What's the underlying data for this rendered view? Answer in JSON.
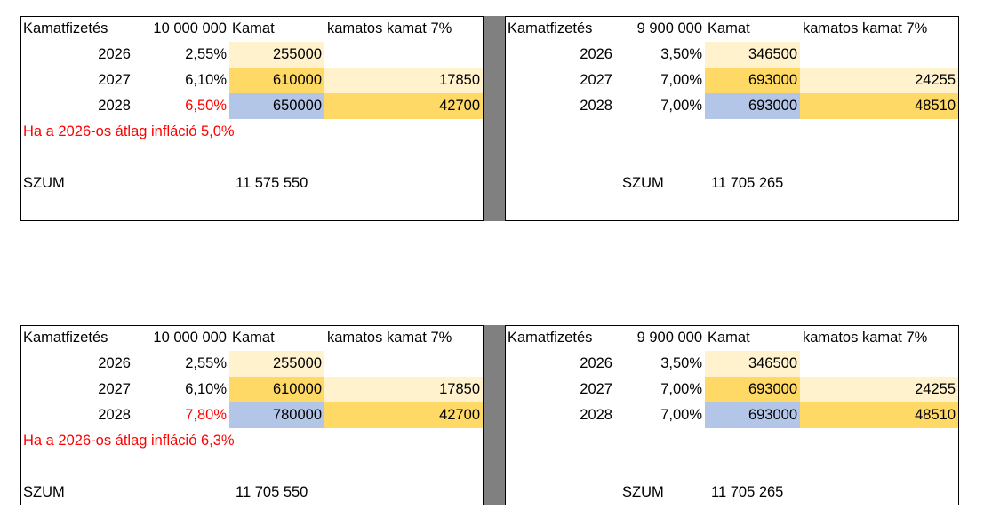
{
  "colors": {
    "light": "#FFF2CC",
    "gold": "#FFD966",
    "blue": "#B4C6E7",
    "red": "#FF0000"
  },
  "blocks": [
    {
      "left": {
        "label": "Kamatfizetés",
        "principal": "10 000 000",
        "kamat": "Kamat",
        "compound": "kamatos kamat 7%",
        "rows": [
          {
            "year": "2026",
            "rate": "2,55%",
            "kamat": "255000",
            "compound": "",
            "red": false
          },
          {
            "year": "2027",
            "rate": "6,10%",
            "kamat": "610000",
            "compound": "17850",
            "red": false
          },
          {
            "year": "2028",
            "rate": "6,50%",
            "kamat": "650000",
            "compound": "42700",
            "red": true
          }
        ],
        "note": "Ha a 2026-os átlag infláció 5,0%",
        "sum_label": "SZUM",
        "sum_value": "11 575 550"
      },
      "right": {
        "label": "Kamatfizetés",
        "principal": "9 900 000",
        "kamat": "Kamat",
        "compound": "kamatos kamat 7%",
        "rows": [
          {
            "year": "2026",
            "rate": "3,50%",
            "kamat": "346500",
            "compound": "",
            "red": false
          },
          {
            "year": "2027",
            "rate": "7,00%",
            "kamat": "693000",
            "compound": "24255",
            "red": false
          },
          {
            "year": "2028",
            "rate": "7,00%",
            "kamat": "693000",
            "compound": "48510",
            "red": false
          }
        ],
        "sum_label": "SZUM",
        "sum_value": "11 705 265"
      }
    },
    {
      "left": {
        "label": "Kamatfizetés",
        "principal": "10 000 000",
        "kamat": "Kamat",
        "compound": "kamatos kamat 7%",
        "rows": [
          {
            "year": "2026",
            "rate": "2,55%",
            "kamat": "255000",
            "compound": "",
            "red": false
          },
          {
            "year": "2027",
            "rate": "6,10%",
            "kamat": "610000",
            "compound": "17850",
            "red": false
          },
          {
            "year": "2028",
            "rate": "7,80%",
            "kamat": "780000",
            "compound": "42700",
            "red": true
          }
        ],
        "note": "Ha a 2026-os átlag infláció 6,3%",
        "sum_label": "SZUM",
        "sum_value": "11 705 550"
      },
      "right": {
        "label": "Kamatfizetés",
        "principal": "9 900 000",
        "kamat": "Kamat",
        "compound": "kamatos kamat 7%",
        "rows": [
          {
            "year": "2026",
            "rate": "3,50%",
            "kamat": "346500",
            "compound": "",
            "red": false
          },
          {
            "year": "2027",
            "rate": "7,00%",
            "kamat": "693000",
            "compound": "24255",
            "red": false
          },
          {
            "year": "2028",
            "rate": "7,00%",
            "kamat": "693000",
            "compound": "48510",
            "red": false
          }
        ],
        "sum_label": "SZUM",
        "sum_value": "11 705 265"
      }
    }
  ]
}
